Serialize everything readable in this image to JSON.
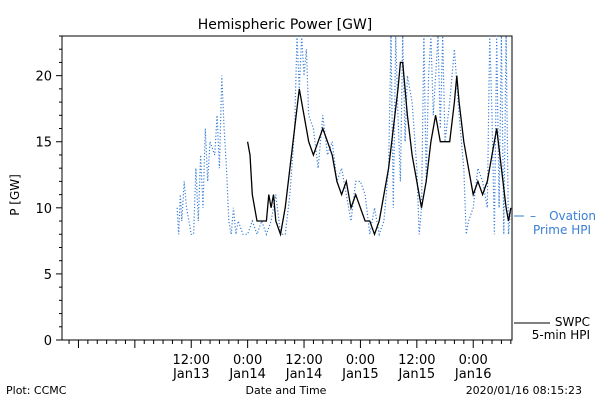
{
  "chart_data": {
    "type": "line",
    "title": "Hemispheric Power [GW]",
    "ylabel": "P [GW]",
    "xlabel": "Date and Time",
    "ylim": [
      0,
      23
    ],
    "xlim": [
      "2020-01-12T08:30",
      "2020-01-16T08:15"
    ],
    "yticks": [
      "0",
      "5",
      "10",
      "15",
      "20"
    ],
    "yvalues": [
      0,
      5,
      10,
      15,
      20
    ],
    "xticks": [
      {
        "t": "2020-01-13T12:00",
        "line1": "12:00",
        "line2": "Jan13"
      },
      {
        "t": "2020-01-14T00:00",
        "line1": "0:00",
        "line2": "Jan14"
      },
      {
        "t": "2020-01-14T12:00",
        "line1": "12:00",
        "line2": "Jan14"
      },
      {
        "t": "2020-01-15T00:00",
        "line1": "0:00",
        "line2": "Jan15"
      },
      {
        "t": "2020-01-15T12:00",
        "line1": "12:00",
        "line2": "Jan15"
      },
      {
        "t": "2020-01-16T00:00",
        "line1": "0:00",
        "line2": "Jan16"
      }
    ],
    "series": [
      {
        "name": "Ovation Prime HPI",
        "color": "#3a7fd5",
        "style": "dotted",
        "points": [
          [
            "2020-01-13T09:00",
            10
          ],
          [
            "2020-01-13T09:20",
            8
          ],
          [
            "2020-01-13T09:40",
            11
          ],
          [
            "2020-01-13T10:00",
            9
          ],
          [
            "2020-01-13T10:30",
            12
          ],
          [
            "2020-01-13T11:00",
            10
          ],
          [
            "2020-01-13T11:30",
            9
          ],
          [
            "2020-01-13T12:00",
            8
          ],
          [
            "2020-01-13T12:30",
            8
          ],
          [
            "2020-01-13T13:00",
            13
          ],
          [
            "2020-01-13T13:30",
            9
          ],
          [
            "2020-01-13T14:00",
            14
          ],
          [
            "2020-01-13T14:30",
            10
          ],
          [
            "2020-01-13T15:00",
            16
          ],
          [
            "2020-01-13T15:30",
            12
          ],
          [
            "2020-01-13T16:00",
            15
          ],
          [
            "2020-01-13T17:00",
            14
          ],
          [
            "2020-01-13T17:30",
            17
          ],
          [
            "2020-01-13T18:00",
            13
          ],
          [
            "2020-01-13T18:30",
            20
          ],
          [
            "2020-01-13T19:00",
            16
          ],
          [
            "2020-01-13T19:30",
            13
          ],
          [
            "2020-01-13T20:00",
            9
          ],
          [
            "2020-01-13T20:30",
            8
          ],
          [
            "2020-01-13T21:00",
            10
          ],
          [
            "2020-01-13T21:30",
            8
          ],
          [
            "2020-01-13T22:00",
            9
          ],
          [
            "2020-01-13T23:00",
            8
          ],
          [
            "2020-01-14T00:00",
            8
          ],
          [
            "2020-01-14T01:00",
            9
          ],
          [
            "2020-01-14T02:00",
            8
          ],
          [
            "2020-01-14T03:00",
            9
          ],
          [
            "2020-01-14T04:00",
            8
          ],
          [
            "2020-01-14T05:00",
            9
          ],
          [
            "2020-01-14T06:00",
            11
          ],
          [
            "2020-01-14T07:00",
            8
          ],
          [
            "2020-01-14T08:00",
            8
          ],
          [
            "2020-01-14T09:00",
            11
          ],
          [
            "2020-01-14T10:00",
            16
          ],
          [
            "2020-01-14T10:30",
            23
          ],
          [
            "2020-01-14T11:00",
            19
          ],
          [
            "2020-01-14T11:30",
            23
          ],
          [
            "2020-01-14T12:00",
            20
          ],
          [
            "2020-01-14T12:30",
            22
          ],
          [
            "2020-01-14T13:00",
            17
          ],
          [
            "2020-01-14T14:00",
            16
          ],
          [
            "2020-01-14T15:00",
            13
          ],
          [
            "2020-01-14T16:00",
            17
          ],
          [
            "2020-01-14T17:00",
            14
          ],
          [
            "2020-01-14T18:00",
            15
          ],
          [
            "2020-01-14T19:00",
            12
          ],
          [
            "2020-01-14T20:00",
            13
          ],
          [
            "2020-01-14T21:00",
            11
          ],
          [
            "2020-01-14T22:00",
            9
          ],
          [
            "2020-01-14T23:00",
            12
          ],
          [
            "2020-01-15T00:00",
            12
          ],
          [
            "2020-01-15T01:00",
            11
          ],
          [
            "2020-01-15T02:00",
            8
          ],
          [
            "2020-01-15T03:00",
            10
          ],
          [
            "2020-01-15T04:00",
            8
          ],
          [
            "2020-01-15T05:00",
            9
          ],
          [
            "2020-01-15T06:00",
            13
          ],
          [
            "2020-01-15T06:30",
            23
          ],
          [
            "2020-01-15T07:00",
            10
          ],
          [
            "2020-01-15T07:30",
            23
          ],
          [
            "2020-01-15T08:00",
            17
          ],
          [
            "2020-01-15T08:30",
            12
          ],
          [
            "2020-01-15T09:00",
            23
          ],
          [
            "2020-01-15T09:30",
            15
          ],
          [
            "2020-01-15T10:00",
            20
          ],
          [
            "2020-01-15T11:00",
            18
          ],
          [
            "2020-01-15T12:00",
            13
          ],
          [
            "2020-01-15T12:30",
            8
          ],
          [
            "2020-01-15T13:00",
            10
          ],
          [
            "2020-01-15T13:30",
            23
          ],
          [
            "2020-01-15T14:00",
            12
          ],
          [
            "2020-01-15T14:30",
            20
          ],
          [
            "2020-01-15T15:00",
            23
          ],
          [
            "2020-01-15T15:30",
            17
          ],
          [
            "2020-01-15T16:00",
            20
          ],
          [
            "2020-01-15T16:30",
            23
          ],
          [
            "2020-01-15T17:00",
            16
          ],
          [
            "2020-01-15T17:30",
            23
          ],
          [
            "2020-01-15T18:00",
            15
          ],
          [
            "2020-01-15T19:00",
            18
          ],
          [
            "2020-01-15T20:00",
            22
          ],
          [
            "2020-01-15T21:00",
            17
          ],
          [
            "2020-01-15T22:00",
            13
          ],
          [
            "2020-01-15T22:30",
            8
          ],
          [
            "2020-01-15T23:00",
            9
          ],
          [
            "2020-01-16T00:00",
            10
          ],
          [
            "2020-01-16T01:00",
            13
          ],
          [
            "2020-01-16T02:00",
            12
          ],
          [
            "2020-01-16T03:00",
            10
          ],
          [
            "2020-01-16T03:30",
            23
          ],
          [
            "2020-01-16T04:00",
            17
          ],
          [
            "2020-01-16T04:30",
            8
          ],
          [
            "2020-01-16T05:00",
            23
          ],
          [
            "2020-01-16T05:30",
            10
          ],
          [
            "2020-01-16T06:00",
            23
          ],
          [
            "2020-01-16T06:30",
            8
          ],
          [
            "2020-01-16T07:00",
            23
          ],
          [
            "2020-01-16T07:30",
            8
          ],
          [
            "2020-01-16T08:00",
            10
          ]
        ]
      },
      {
        "name": "SWPC 5-min HPI",
        "color": "#000000",
        "style": "solid",
        "points": [
          [
            "2020-01-14T00:00",
            15
          ],
          [
            "2020-01-14T00:30",
            14
          ],
          [
            "2020-01-14T01:00",
            11
          ],
          [
            "2020-01-14T02:00",
            9
          ],
          [
            "2020-01-14T03:00",
            9
          ],
          [
            "2020-01-14T04:00",
            9
          ],
          [
            "2020-01-14T04:30",
            11
          ],
          [
            "2020-01-14T05:00",
            10
          ],
          [
            "2020-01-14T05:30",
            11
          ],
          [
            "2020-01-14T06:00",
            9
          ],
          [
            "2020-01-14T07:00",
            8
          ],
          [
            "2020-01-14T08:00",
            10
          ],
          [
            "2020-01-14T09:00",
            13
          ],
          [
            "2020-01-14T10:00",
            16
          ],
          [
            "2020-01-14T11:00",
            19
          ],
          [
            "2020-01-14T12:00",
            17
          ],
          [
            "2020-01-14T13:00",
            15
          ],
          [
            "2020-01-14T14:00",
            14
          ],
          [
            "2020-01-14T15:00",
            15
          ],
          [
            "2020-01-14T16:00",
            16
          ],
          [
            "2020-01-14T17:00",
            15
          ],
          [
            "2020-01-14T18:00",
            14
          ],
          [
            "2020-01-14T19:00",
            12
          ],
          [
            "2020-01-14T20:00",
            11
          ],
          [
            "2020-01-14T21:00",
            12
          ],
          [
            "2020-01-14T22:00",
            10
          ],
          [
            "2020-01-14T23:00",
            11
          ],
          [
            "2020-01-15T00:00",
            10
          ],
          [
            "2020-01-15T01:00",
            9
          ],
          [
            "2020-01-15T02:00",
            9
          ],
          [
            "2020-01-15T03:00",
            8
          ],
          [
            "2020-01-15T04:00",
            9
          ],
          [
            "2020-01-15T05:00",
            11
          ],
          [
            "2020-01-15T06:00",
            13
          ],
          [
            "2020-01-15T07:00",
            16
          ],
          [
            "2020-01-15T08:00",
            19
          ],
          [
            "2020-01-15T08:30",
            21
          ],
          [
            "2020-01-15T09:00",
            21
          ],
          [
            "2020-01-15T10:00",
            17
          ],
          [
            "2020-01-15T11:00",
            14
          ],
          [
            "2020-01-15T12:00",
            12
          ],
          [
            "2020-01-15T13:00",
            10
          ],
          [
            "2020-01-15T14:00",
            12
          ],
          [
            "2020-01-15T15:00",
            15
          ],
          [
            "2020-01-15T16:00",
            17
          ],
          [
            "2020-01-15T17:00",
            15
          ],
          [
            "2020-01-15T18:00",
            15
          ],
          [
            "2020-01-15T19:00",
            15
          ],
          [
            "2020-01-15T20:00",
            18
          ],
          [
            "2020-01-15T20:30",
            20
          ],
          [
            "2020-01-15T21:00",
            18
          ],
          [
            "2020-01-15T22:00",
            15
          ],
          [
            "2020-01-15T23:00",
            13
          ],
          [
            "2020-01-16T00:00",
            11
          ],
          [
            "2020-01-16T01:00",
            12
          ],
          [
            "2020-01-16T02:00",
            11
          ],
          [
            "2020-01-16T03:00",
            12
          ],
          [
            "2020-01-16T04:00",
            14
          ],
          [
            "2020-01-16T05:00",
            16
          ],
          [
            "2020-01-16T06:00",
            13
          ],
          [
            "2020-01-16T07:00",
            10
          ],
          [
            "2020-01-16T07:30",
            9
          ],
          [
            "2020-01-16T08:00",
            10
          ]
        ]
      }
    ]
  },
  "legend": {
    "ovation_line1": "Ovation",
    "ovation_line2": "Prime HPI",
    "swpc_line1": "SWPC",
    "swpc_line2": "5-min HPI"
  },
  "footer": {
    "left": "Plot: CCMC",
    "center": "Date and Time",
    "right": "2020/01/16 08:15:23"
  }
}
